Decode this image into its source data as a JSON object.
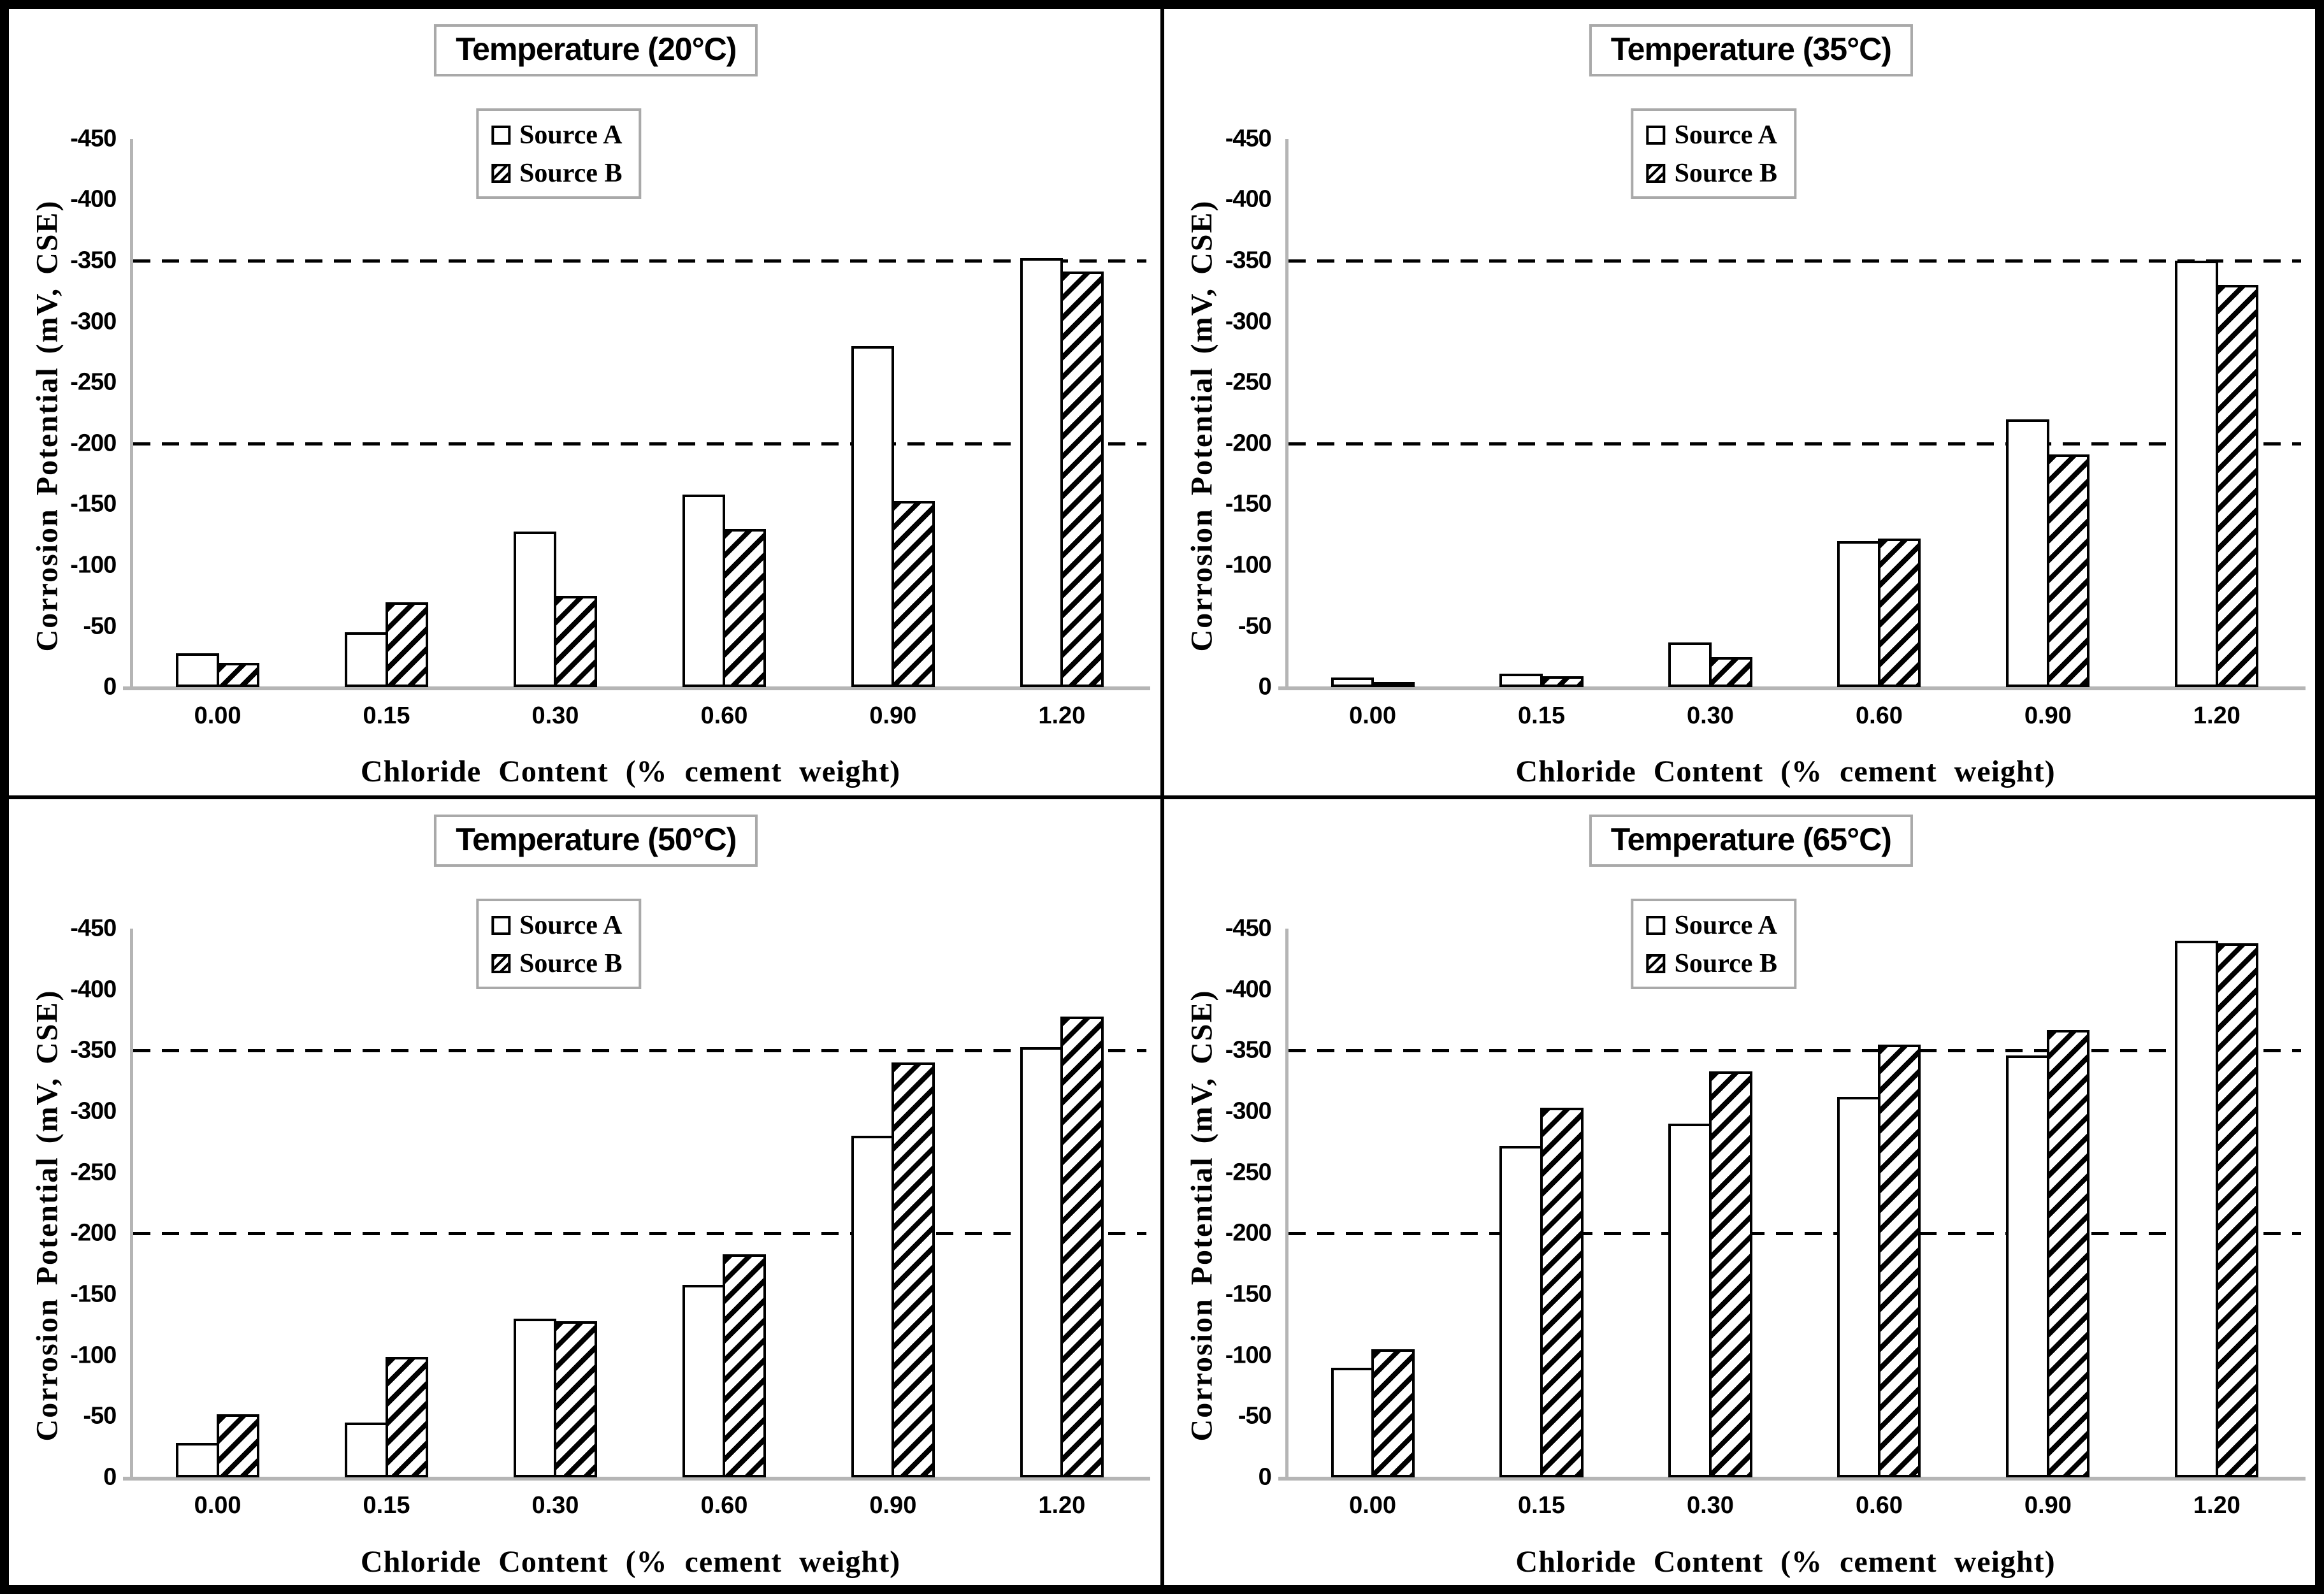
{
  "shared": {
    "y_axis_label": "Corrosion Potential (mV, CSE)",
    "x_axis_label": "Chloride Content (% cement weight)",
    "y_ticks": [
      0,
      -50,
      -100,
      -150,
      -200,
      -250,
      -300,
      -350,
      -400,
      -450
    ],
    "threshold_lines": [
      -200,
      -350
    ],
    "legend": [
      "Source A",
      "Source B"
    ],
    "colors": {
      "bar_fill": "#ffffff",
      "bar_outline": "#000000",
      "hatch": "#000000",
      "axis_line": "#b5b5b5",
      "box_border": "#a9a9a9",
      "text": "#000000",
      "frame": "#000000",
      "background": "#ffffff"
    }
  },
  "chart_data": [
    {
      "type": "bar",
      "title": "Temperature (20°C)",
      "xlabel": "Chloride Content (% cement weight)",
      "ylabel": "Corrosion Potential (mV, CSE)",
      "ylim": [
        0,
        -450
      ],
      "grid": "dashed thresholds at -200 and -350",
      "legend_position": "top-center",
      "categories": [
        "0.00",
        "0.15",
        "0.30",
        "0.60",
        "0.90",
        "1.20"
      ],
      "series": [
        {
          "name": "Source A",
          "fill": "white",
          "values": [
            -28,
            -45,
            -128,
            -158,
            -280,
            -352
          ]
        },
        {
          "name": "Source B",
          "fill": "hatch",
          "values": [
            -20,
            -70,
            -75,
            -130,
            -153,
            -341
          ]
        }
      ]
    },
    {
      "type": "bar",
      "title": "Temperature (35°C)",
      "xlabel": "Chloride Content (% cement weight)",
      "ylabel": "Corrosion Potential (mV, CSE)",
      "ylim": [
        0,
        -450
      ],
      "grid": "dashed thresholds at -200 and -350",
      "legend_position": "top-center",
      "categories": [
        "0.00",
        "0.15",
        "0.30",
        "0.60",
        "0.90",
        "1.20"
      ],
      "series": [
        {
          "name": "Source A",
          "fill": "white",
          "values": [
            -8,
            -11,
            -37,
            -120,
            -220,
            -350
          ]
        },
        {
          "name": "Source B",
          "fill": "hatch",
          "values": [
            -4,
            -9,
            -25,
            -122,
            -191,
            -330
          ]
        }
      ]
    },
    {
      "type": "bar",
      "title": "Temperature (50°C)",
      "xlabel": "Chloride Content (% cement weight)",
      "ylabel": "Corrosion Potential (mV, CSE)",
      "ylim": [
        0,
        -450
      ],
      "grid": "dashed thresholds at -200 and -350",
      "legend_position": "top-center",
      "categories": [
        "0.00",
        "0.15",
        "0.30",
        "0.60",
        "0.90",
        "1.20"
      ],
      "series": [
        {
          "name": "Source A",
          "fill": "white",
          "values": [
            -28,
            -45,
            -130,
            -158,
            -280,
            -353
          ]
        },
        {
          "name": "Source B",
          "fill": "hatch",
          "values": [
            -52,
            -99,
            -128,
            -183,
            -340,
            -378
          ]
        }
      ]
    },
    {
      "type": "bar",
      "title": "Temperature (65°C)",
      "xlabel": "Chloride Content (% cement weight)",
      "ylabel": "Corrosion Potential (mV, CSE)",
      "ylim": [
        0,
        -450
      ],
      "grid": "dashed thresholds at -200 and -350",
      "legend_position": "top-center",
      "categories": [
        "0.00",
        "0.15",
        "0.30",
        "0.60",
        "0.90",
        "1.20"
      ],
      "series": [
        {
          "name": "Source A",
          "fill": "white",
          "values": [
            -90,
            -272,
            -290,
            -312,
            -346,
            -440
          ]
        },
        {
          "name": "Source B",
          "fill": "hatch",
          "values": [
            -105,
            -303,
            -333,
            -355,
            -367,
            -438
          ]
        }
      ]
    }
  ]
}
